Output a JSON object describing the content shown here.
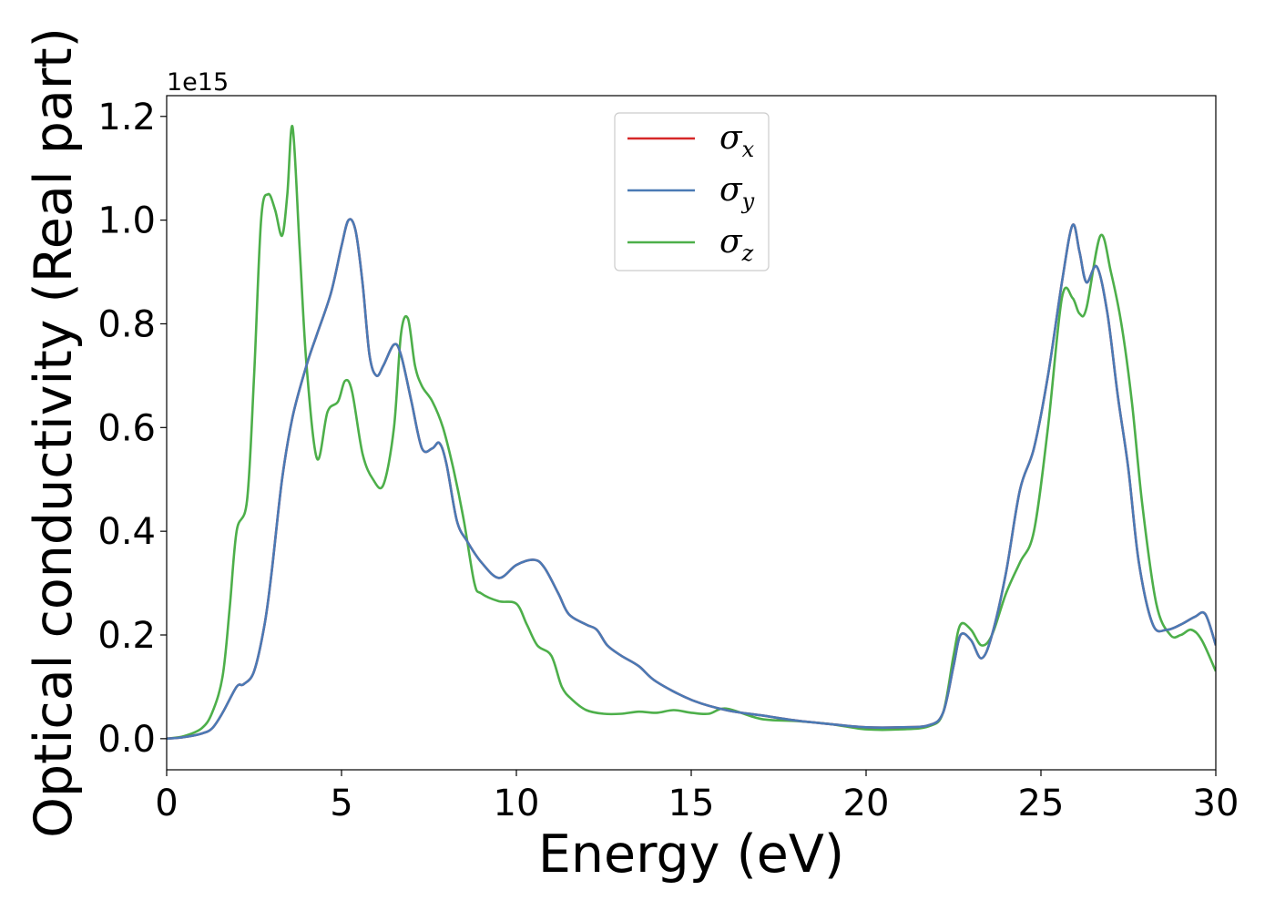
{
  "chart_data": {
    "type": "line",
    "xlabel": "Energy (eV)",
    "ylabel": "Optical conductivity (Real part)",
    "y_offset_label": "1e15",
    "xlim": [
      0,
      30
    ],
    "ylim": [
      -0.06,
      1.24
    ],
    "xticks": [
      0,
      5,
      10,
      15,
      20,
      25,
      30
    ],
    "xtick_labels": [
      "0",
      "5",
      "10",
      "15",
      "20",
      "25",
      "30"
    ],
    "yticks": [
      0.0,
      0.2,
      0.4,
      0.6,
      0.8,
      1.0,
      1.2
    ],
    "ytick_labels": [
      "0.0",
      "0.2",
      "0.4",
      "0.6",
      "0.8",
      "1.0",
      "1.2"
    ],
    "grid": false,
    "legend_position": "top-center",
    "series": [
      {
        "name": "σx",
        "symbol": "σ",
        "subscript": "x",
        "color": "#d62728",
        "x": [
          0,
          0.5,
          1.0,
          1.3,
          1.6,
          2.0,
          2.2,
          2.5,
          2.8,
          3.0,
          3.3,
          3.6,
          4.0,
          4.3,
          4.7,
          5.0,
          5.2,
          5.4,
          5.6,
          5.8,
          6.0,
          6.2,
          6.5,
          6.7,
          7.0,
          7.3,
          7.6,
          7.8,
          8.0,
          8.3,
          8.6,
          9.0,
          9.5,
          10.0,
          10.5,
          10.8,
          11.2,
          11.5,
          12.0,
          12.3,
          12.6,
          13.0,
          13.5,
          14.0,
          15.0,
          16.0,
          17.0,
          18.0,
          19.0,
          20.0,
          21.0,
          21.8,
          22.2,
          22.5,
          22.7,
          23.0,
          23.3,
          23.6,
          24.0,
          24.4,
          24.8,
          25.2,
          25.6,
          25.9,
          26.1,
          26.3,
          26.6,
          26.9,
          27.2,
          27.5,
          27.8,
          28.2,
          28.6,
          29.0,
          29.4,
          29.7,
          30.0
        ],
        "y": [
          0.0,
          0.003,
          0.01,
          0.02,
          0.05,
          0.1,
          0.105,
          0.13,
          0.22,
          0.32,
          0.5,
          0.62,
          0.72,
          0.78,
          0.86,
          0.95,
          1.0,
          0.98,
          0.88,
          0.74,
          0.7,
          0.72,
          0.76,
          0.74,
          0.65,
          0.56,
          0.56,
          0.57,
          0.53,
          0.42,
          0.38,
          0.34,
          0.31,
          0.335,
          0.345,
          0.33,
          0.28,
          0.24,
          0.22,
          0.21,
          0.18,
          0.16,
          0.14,
          0.11,
          0.075,
          0.055,
          0.045,
          0.035,
          0.028,
          0.022,
          0.022,
          0.026,
          0.05,
          0.14,
          0.2,
          0.19,
          0.155,
          0.2,
          0.32,
          0.48,
          0.56,
          0.7,
          0.88,
          0.99,
          0.94,
          0.88,
          0.91,
          0.82,
          0.66,
          0.52,
          0.34,
          0.22,
          0.21,
          0.22,
          0.235,
          0.24,
          0.18
        ]
      },
      {
        "name": "σy",
        "symbol": "σ",
        "subscript": "y",
        "color": "#4a7ab5",
        "x": [
          0,
          0.5,
          1.0,
          1.3,
          1.6,
          2.0,
          2.2,
          2.5,
          2.8,
          3.0,
          3.3,
          3.6,
          4.0,
          4.3,
          4.7,
          5.0,
          5.2,
          5.4,
          5.6,
          5.8,
          6.0,
          6.2,
          6.5,
          6.7,
          7.0,
          7.3,
          7.6,
          7.8,
          8.0,
          8.3,
          8.6,
          9.0,
          9.5,
          10.0,
          10.5,
          10.8,
          11.2,
          11.5,
          12.0,
          12.3,
          12.6,
          13.0,
          13.5,
          14.0,
          15.0,
          16.0,
          17.0,
          18.0,
          19.0,
          20.0,
          21.0,
          21.8,
          22.2,
          22.5,
          22.7,
          23.0,
          23.3,
          23.6,
          24.0,
          24.4,
          24.8,
          25.2,
          25.6,
          25.9,
          26.1,
          26.3,
          26.6,
          26.9,
          27.2,
          27.5,
          27.8,
          28.2,
          28.6,
          29.0,
          29.4,
          29.7,
          30.0
        ],
        "y": [
          0.0,
          0.003,
          0.01,
          0.02,
          0.05,
          0.1,
          0.105,
          0.13,
          0.22,
          0.32,
          0.5,
          0.62,
          0.72,
          0.78,
          0.86,
          0.95,
          1.0,
          0.98,
          0.88,
          0.74,
          0.7,
          0.72,
          0.76,
          0.74,
          0.65,
          0.56,
          0.56,
          0.57,
          0.53,
          0.42,
          0.38,
          0.34,
          0.31,
          0.335,
          0.345,
          0.33,
          0.28,
          0.24,
          0.22,
          0.21,
          0.18,
          0.16,
          0.14,
          0.11,
          0.075,
          0.055,
          0.045,
          0.035,
          0.028,
          0.022,
          0.022,
          0.026,
          0.05,
          0.14,
          0.2,
          0.19,
          0.155,
          0.2,
          0.32,
          0.48,
          0.56,
          0.7,
          0.88,
          0.99,
          0.94,
          0.88,
          0.91,
          0.82,
          0.66,
          0.52,
          0.34,
          0.22,
          0.21,
          0.22,
          0.235,
          0.24,
          0.18
        ]
      },
      {
        "name": "σz",
        "symbol": "σ",
        "subscript": "z",
        "color": "#4daf4a",
        "x": [
          0,
          0.5,
          1.0,
          1.3,
          1.6,
          1.8,
          2.0,
          2.3,
          2.5,
          2.7,
          2.9,
          3.1,
          3.3,
          3.45,
          3.6,
          3.8,
          4.0,
          4.3,
          4.6,
          4.9,
          5.1,
          5.3,
          5.6,
          5.9,
          6.2,
          6.5,
          6.7,
          6.9,
          7.1,
          7.3,
          7.6,
          7.9,
          8.2,
          8.5,
          8.8,
          9.0,
          9.5,
          10.0,
          10.3,
          10.6,
          11.0,
          11.3,
          11.6,
          12.0,
          12.5,
          13.0,
          13.5,
          14.0,
          14.5,
          15.0,
          15.5,
          16.0,
          17.0,
          18.0,
          19.0,
          20.0,
          21.0,
          21.8,
          22.2,
          22.5,
          22.7,
          23.0,
          23.3,
          23.6,
          24.0,
          24.4,
          24.8,
          25.2,
          25.6,
          25.9,
          26.1,
          26.3,
          26.7,
          27.0,
          27.3,
          27.6,
          27.9,
          28.3,
          28.7,
          29.0,
          29.3,
          29.6,
          30.0
        ],
        "y": [
          0.0,
          0.005,
          0.02,
          0.05,
          0.12,
          0.25,
          0.4,
          0.46,
          0.7,
          1.0,
          1.05,
          1.02,
          0.97,
          1.05,
          1.18,
          0.95,
          0.72,
          0.54,
          0.63,
          0.65,
          0.69,
          0.67,
          0.55,
          0.5,
          0.49,
          0.6,
          0.78,
          0.81,
          0.72,
          0.68,
          0.65,
          0.6,
          0.52,
          0.42,
          0.3,
          0.28,
          0.265,
          0.26,
          0.22,
          0.18,
          0.16,
          0.1,
          0.075,
          0.055,
          0.048,
          0.048,
          0.052,
          0.05,
          0.055,
          0.05,
          0.048,
          0.058,
          0.038,
          0.034,
          0.028,
          0.018,
          0.018,
          0.024,
          0.05,
          0.16,
          0.22,
          0.21,
          0.18,
          0.2,
          0.28,
          0.34,
          0.4,
          0.6,
          0.85,
          0.85,
          0.82,
          0.83,
          0.97,
          0.9,
          0.8,
          0.65,
          0.45,
          0.26,
          0.2,
          0.2,
          0.21,
          0.19,
          0.13
        ]
      }
    ]
  }
}
